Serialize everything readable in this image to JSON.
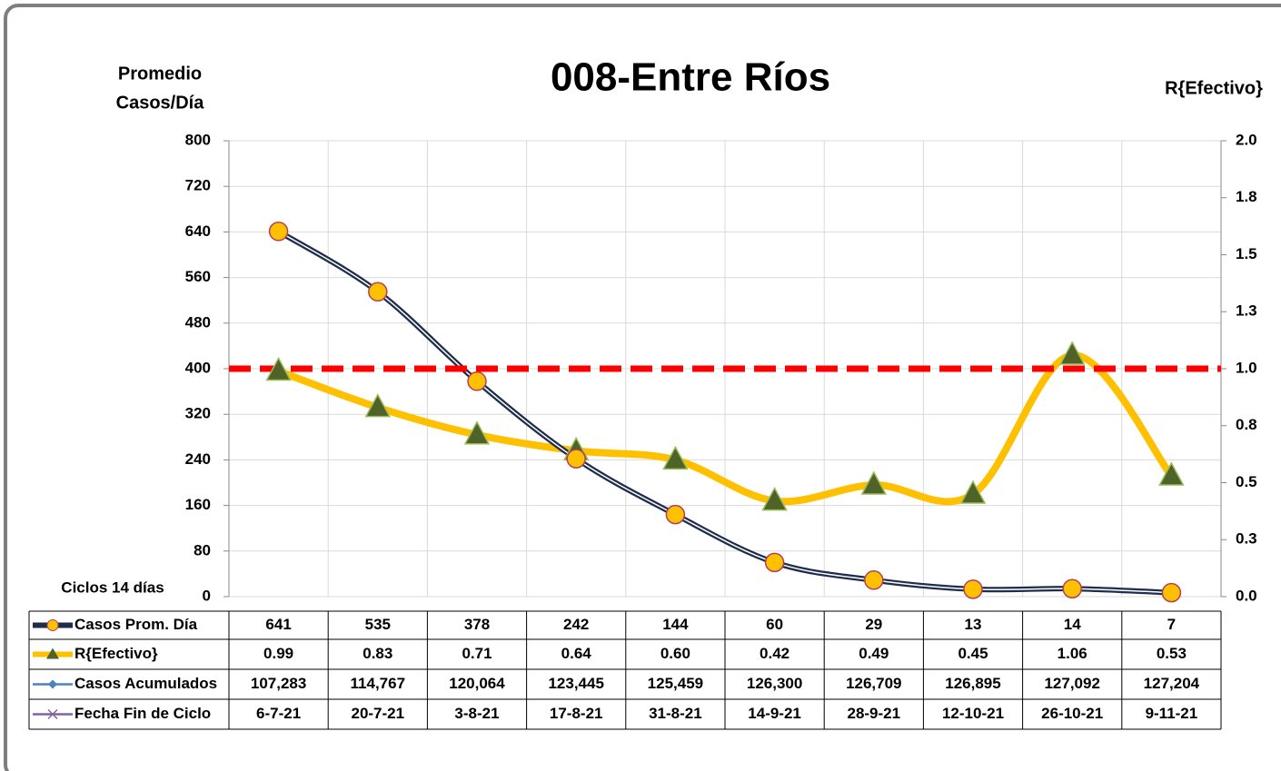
{
  "chart_data": {
    "type": "line",
    "title": "008-Entre Ríos",
    "ylabel": [
      "Promedio",
      "Casos/Día"
    ],
    "y2label": "R{Efectivo}",
    "xlabel": "Ciclos 14 días",
    "categories": [
      "6-7-21",
      "20-7-21",
      "3-8-21",
      "17-8-21",
      "31-8-21",
      "14-9-21",
      "28-9-21",
      "12-10-21",
      "26-10-21",
      "9-11-21"
    ],
    "category_row_name": "Fecha Fin de Ciclo",
    "category_row_color": "#8064a2",
    "series": [
      {
        "name": "Casos Prom. Día",
        "color": "#1f2d4d",
        "marker_color": "#ffc000",
        "values": [
          641,
          535,
          378,
          242,
          144,
          60,
          29,
          13,
          14,
          7
        ]
      },
      {
        "name": "R{Efectivo}",
        "color": "#ffc000",
        "marker_color": "#4f6228",
        "axis": "y2",
        "values": [
          0.99,
          0.83,
          0.71,
          0.64,
          0.6,
          0.42,
          0.49,
          0.45,
          1.06,
          0.53
        ],
        "value_labels": [
          "0.99",
          "0.83",
          "0.71",
          "0.64",
          "0.60",
          "0.42",
          "0.49",
          "0.45",
          "1.06",
          "0.53"
        ]
      },
      {
        "name": "Casos Acumulados",
        "color": "#4f81bd",
        "table_only": true,
        "values": [
          107283,
          114767,
          120064,
          123445,
          125459,
          126300,
          126709,
          126895,
          127092,
          127204
        ],
        "value_labels": [
          "107,283",
          "114,767",
          "120,064",
          "123,445",
          "125,459",
          "126,300",
          "126,709",
          "126,895",
          "127,092",
          "127,204"
        ]
      }
    ],
    "ylim": [
      0,
      800
    ],
    "yticks": [
      0,
      80,
      160,
      240,
      320,
      400,
      480,
      560,
      640,
      720,
      800
    ],
    "y2lim": [
      0,
      2
    ],
    "y2ticks": [
      {
        "value": 0,
        "label": "0.0"
      },
      {
        "value": 0.25,
        "label": "0.3"
      },
      {
        "value": 0.5,
        "label": "0.5"
      },
      {
        "value": 0.75,
        "label": "0.8"
      },
      {
        "value": 1,
        "label": "1.0"
      },
      {
        "value": 1.25,
        "label": "1.3"
      },
      {
        "value": 1.5,
        "label": "1.5"
      },
      {
        "value": 1.75,
        "label": "1.8"
      },
      {
        "value": 2,
        "label": "2.0"
      }
    ],
    "reference_line": {
      "value": 1,
      "axis": "y2",
      "color": "#ff0000"
    },
    "grid": true,
    "smooth": true
  }
}
